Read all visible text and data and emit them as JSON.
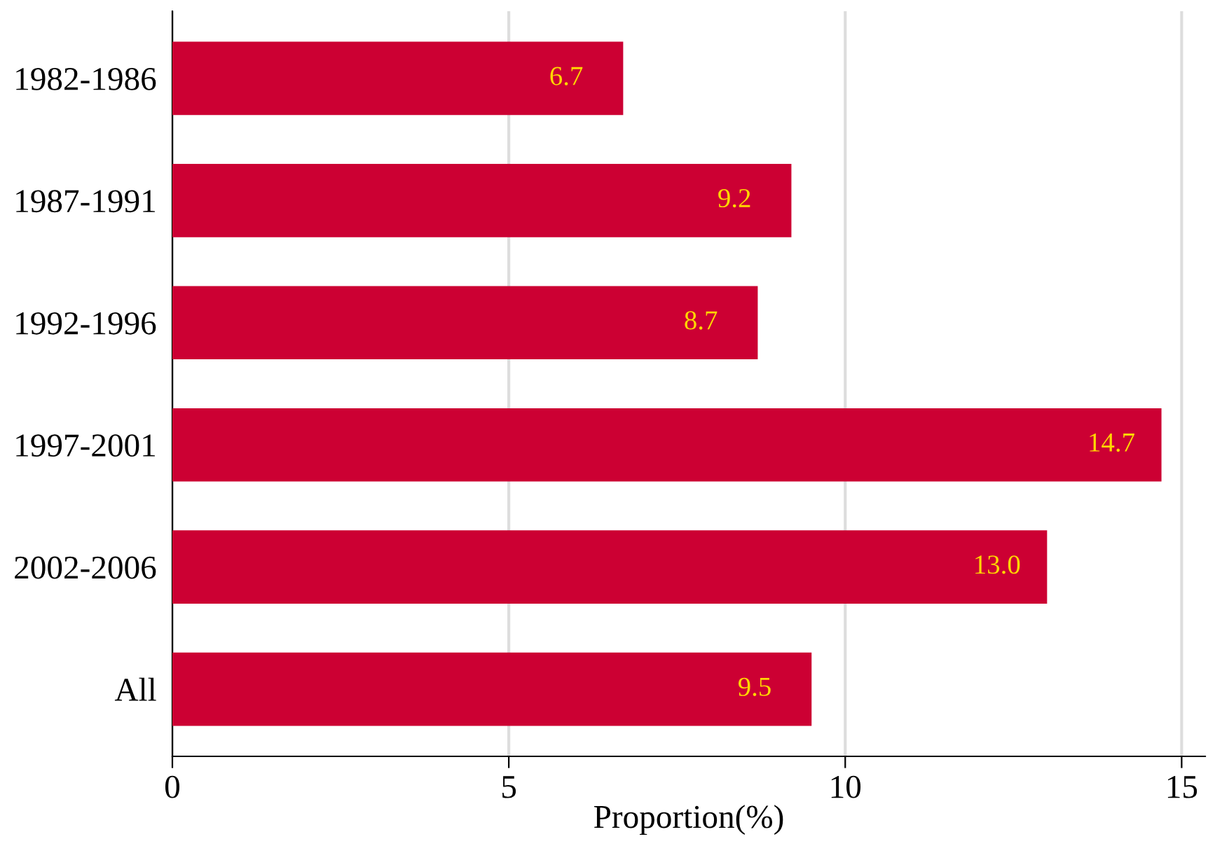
{
  "chart_data": {
    "type": "bar",
    "orientation": "horizontal",
    "xlabel": "Proportion(%)",
    "categories": [
      "1982-1986",
      "1987-1991",
      "1992-1996",
      "1997-2001",
      "2002-2006",
      "All"
    ],
    "values": [
      6.7,
      9.2,
      8.7,
      14.7,
      13.0,
      9.5
    ],
    "value_labels": [
      "6.7",
      "9.2",
      "8.7",
      "14.7",
      "13.0",
      "9.5"
    ],
    "color": "#cc0033",
    "xlim": [
      0,
      15.35
    ],
    "xticks": [
      0,
      5,
      10,
      15
    ],
    "grid": "x",
    "legend": false
  }
}
